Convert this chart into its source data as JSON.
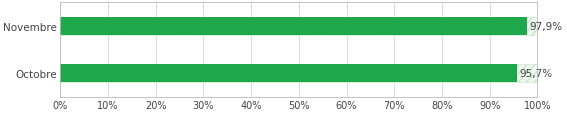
{
  "categories": [
    "Novembre",
    "Octobre"
  ],
  "values": [
    97.9,
    95.7
  ],
  "bar_color": "#1ea84b",
  "hatch_bg_color": "#f0f8f0",
  "hatch_pattern": "////",
  "hatch_edge_color": "#c8e6c8",
  "text_color": "#444444",
  "background_color": "#ffffff",
  "plot_bg_color": "#ffffff",
  "grid_color": "#cccccc",
  "xlim": [
    0,
    100
  ],
  "xticks": [
    0,
    10,
    20,
    30,
    40,
    50,
    60,
    70,
    80,
    90,
    100
  ],
  "xlabel_fontsize": 7,
  "ylabel_fontsize": 7.5,
  "bar_label_fontsize": 7.5,
  "bar_height": 0.38,
  "figsize": [
    5.67,
    1.14
  ],
  "dpi": 100,
  "border_color": "#bbbbbb"
}
